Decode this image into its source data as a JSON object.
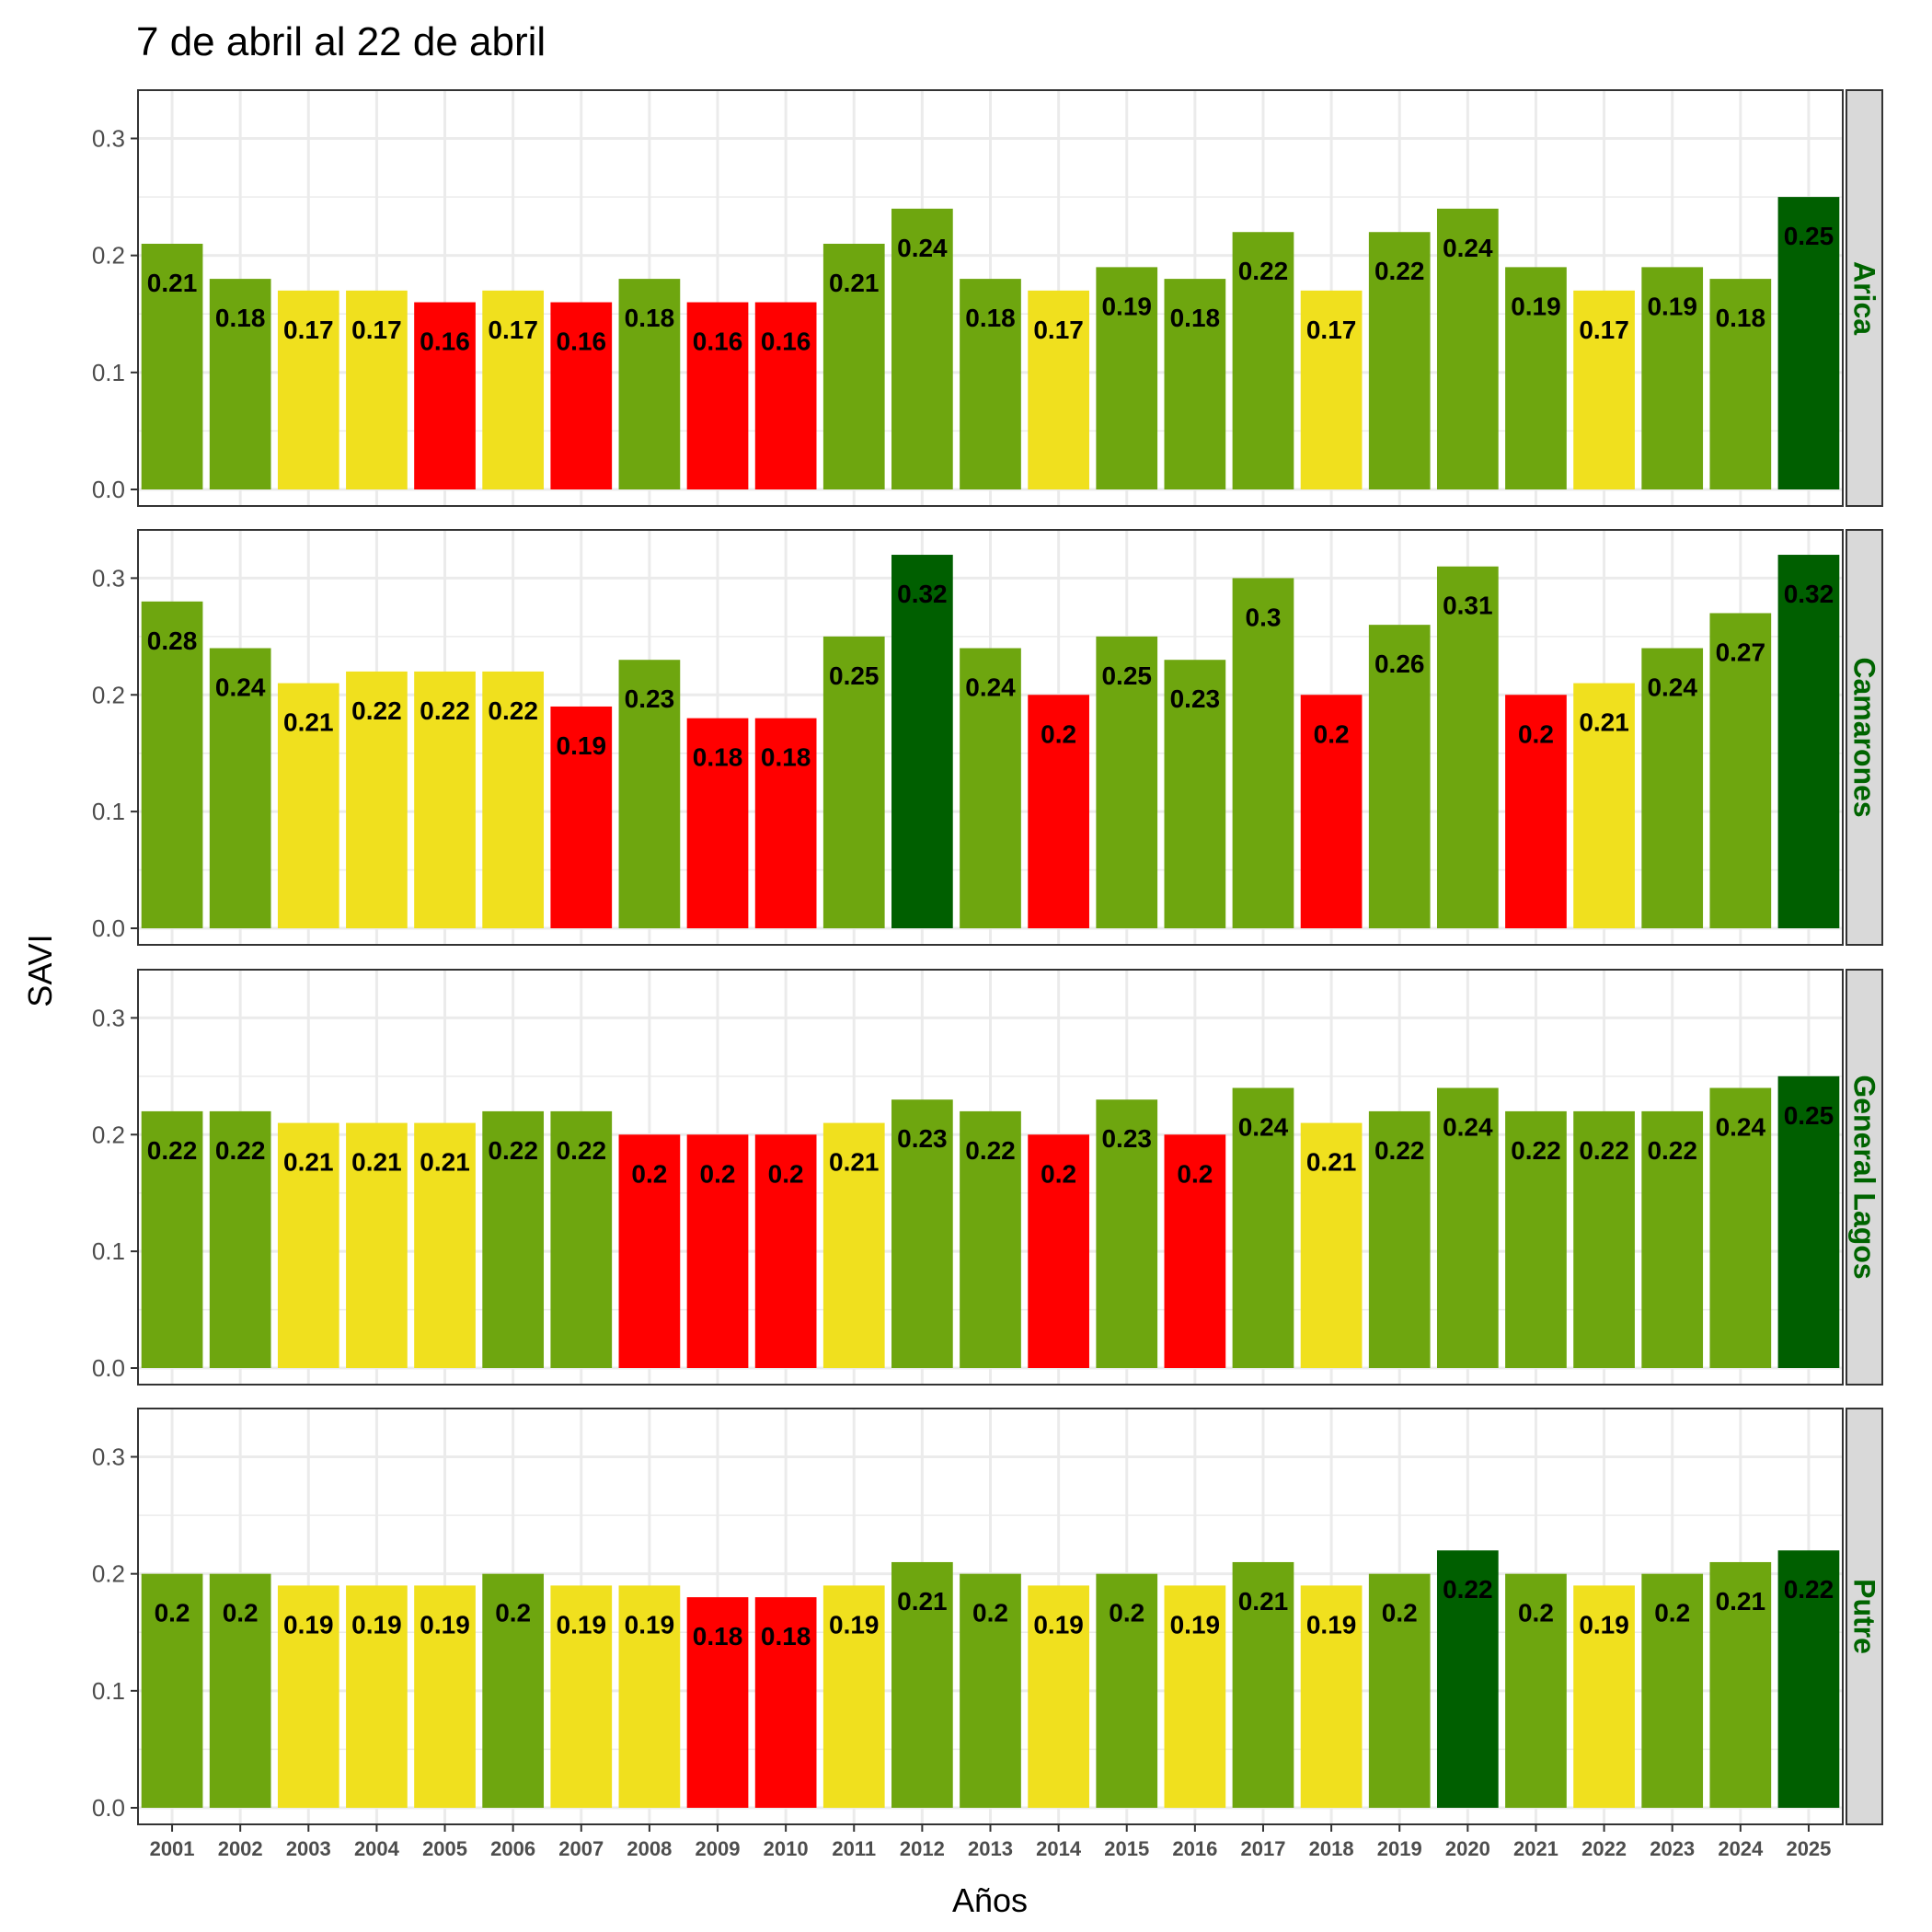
{
  "chart_data": {
    "type": "bar",
    "title": "7 de abril al 22 de abril",
    "xlabel": "Años",
    "ylabel": "SAVI",
    "ylim": [
      0,
      0.335
    ],
    "yticks": [
      "0.0",
      "0.1",
      "0.2",
      "0.3"
    ],
    "categories": [
      "2001",
      "2002",
      "2003",
      "2004",
      "2005",
      "2006",
      "2007",
      "2008",
      "2009",
      "2010",
      "2011",
      "2012",
      "2013",
      "2014",
      "2015",
      "2016",
      "2017",
      "2018",
      "2019",
      "2020",
      "2021",
      "2022",
      "2023",
      "2024",
      "2025"
    ],
    "colors": {
      "red": "#ff0000",
      "yellow": "#f0e01e",
      "green": "#6ea60f",
      "darkgreen": "#005f00",
      "strip_bg": "#d9d9d9",
      "strip_text": "#006400",
      "grid": "#ebebeb"
    },
    "facets": [
      {
        "name": "Arica",
        "values": [
          0.21,
          0.18,
          0.17,
          0.17,
          0.16,
          0.17,
          0.16,
          0.18,
          0.16,
          0.16,
          0.21,
          0.24,
          0.18,
          0.17,
          0.19,
          0.18,
          0.22,
          0.17,
          0.22,
          0.24,
          0.19,
          0.17,
          0.19,
          0.18,
          0.25
        ],
        "labels": [
          "0.21",
          "0.18",
          "0.17",
          "0.17",
          "0.16",
          "0.17",
          "0.16",
          "0.18",
          "0.16",
          "0.16",
          "0.21",
          "0.24",
          "0.18",
          "0.17",
          "0.19",
          "0.18",
          "0.22",
          "0.17",
          "0.22",
          "0.24",
          "0.19",
          "0.17",
          "0.19",
          "0.18",
          "0.25"
        ],
        "fills": [
          "green",
          "green",
          "yellow",
          "yellow",
          "red",
          "yellow",
          "red",
          "green",
          "red",
          "red",
          "green",
          "green",
          "green",
          "yellow",
          "green",
          "green",
          "green",
          "yellow",
          "green",
          "green",
          "green",
          "yellow",
          "green",
          "green",
          "darkgreen"
        ]
      },
      {
        "name": "Camarones",
        "values": [
          0.28,
          0.24,
          0.21,
          0.22,
          0.22,
          0.22,
          0.19,
          0.23,
          0.18,
          0.18,
          0.25,
          0.32,
          0.24,
          0.2,
          0.25,
          0.23,
          0.3,
          0.2,
          0.26,
          0.31,
          0.2,
          0.21,
          0.24,
          0.27,
          0.32
        ],
        "labels": [
          "0.28",
          "0.24",
          "0.21",
          "0.22",
          "0.22",
          "0.22",
          "0.19",
          "0.23",
          "0.18",
          "0.18",
          "0.25",
          "0.32",
          "0.24",
          "0.2",
          "0.25",
          "0.23",
          "0.3",
          "0.2",
          "0.26",
          "0.31",
          "0.2",
          "0.21",
          "0.24",
          "0.27",
          "0.32"
        ],
        "fills": [
          "green",
          "green",
          "yellow",
          "yellow",
          "yellow",
          "yellow",
          "red",
          "green",
          "red",
          "red",
          "green",
          "darkgreen",
          "green",
          "red",
          "green",
          "green",
          "green",
          "red",
          "green",
          "green",
          "red",
          "yellow",
          "green",
          "green",
          "darkgreen"
        ]
      },
      {
        "name": "General Lagos",
        "values": [
          0.22,
          0.22,
          0.21,
          0.21,
          0.21,
          0.22,
          0.22,
          0.2,
          0.2,
          0.2,
          0.21,
          0.23,
          0.22,
          0.2,
          0.23,
          0.2,
          0.24,
          0.21,
          0.22,
          0.24,
          0.22,
          0.22,
          0.22,
          0.24,
          0.25
        ],
        "labels": [
          "0.22",
          "0.22",
          "0.21",
          "0.21",
          "0.21",
          "0.22",
          "0.22",
          "0.2",
          "0.2",
          "0.2",
          "0.21",
          "0.23",
          "0.22",
          "0.2",
          "0.23",
          "0.2",
          "0.24",
          "0.21",
          "0.22",
          "0.24",
          "0.22",
          "0.22",
          "0.22",
          "0.24",
          "0.25"
        ],
        "fills": [
          "green",
          "green",
          "yellow",
          "yellow",
          "yellow",
          "green",
          "green",
          "red",
          "red",
          "red",
          "yellow",
          "green",
          "green",
          "red",
          "green",
          "red",
          "green",
          "yellow",
          "green",
          "green",
          "green",
          "green",
          "green",
          "green",
          "darkgreen"
        ]
      },
      {
        "name": "Putre",
        "values": [
          0.2,
          0.2,
          0.19,
          0.19,
          0.19,
          0.2,
          0.19,
          0.19,
          0.18,
          0.18,
          0.19,
          0.21,
          0.2,
          0.19,
          0.2,
          0.19,
          0.21,
          0.19,
          0.2,
          0.22,
          0.2,
          0.19,
          0.2,
          0.21,
          0.22
        ],
        "labels": [
          "0.2",
          "0.2",
          "0.19",
          "0.19",
          "0.19",
          "0.2",
          "0.19",
          "0.19",
          "0.18",
          "0.18",
          "0.19",
          "0.21",
          "0.2",
          "0.19",
          "0.2",
          "0.19",
          "0.21",
          "0.19",
          "0.2",
          "0.22",
          "0.2",
          "0.19",
          "0.2",
          "0.21",
          "0.22"
        ],
        "fills": [
          "green",
          "green",
          "yellow",
          "yellow",
          "yellow",
          "green",
          "yellow",
          "yellow",
          "red",
          "red",
          "yellow",
          "green",
          "green",
          "yellow",
          "green",
          "yellow",
          "green",
          "yellow",
          "green",
          "darkgreen",
          "green",
          "yellow",
          "green",
          "green",
          "darkgreen"
        ]
      }
    ]
  }
}
